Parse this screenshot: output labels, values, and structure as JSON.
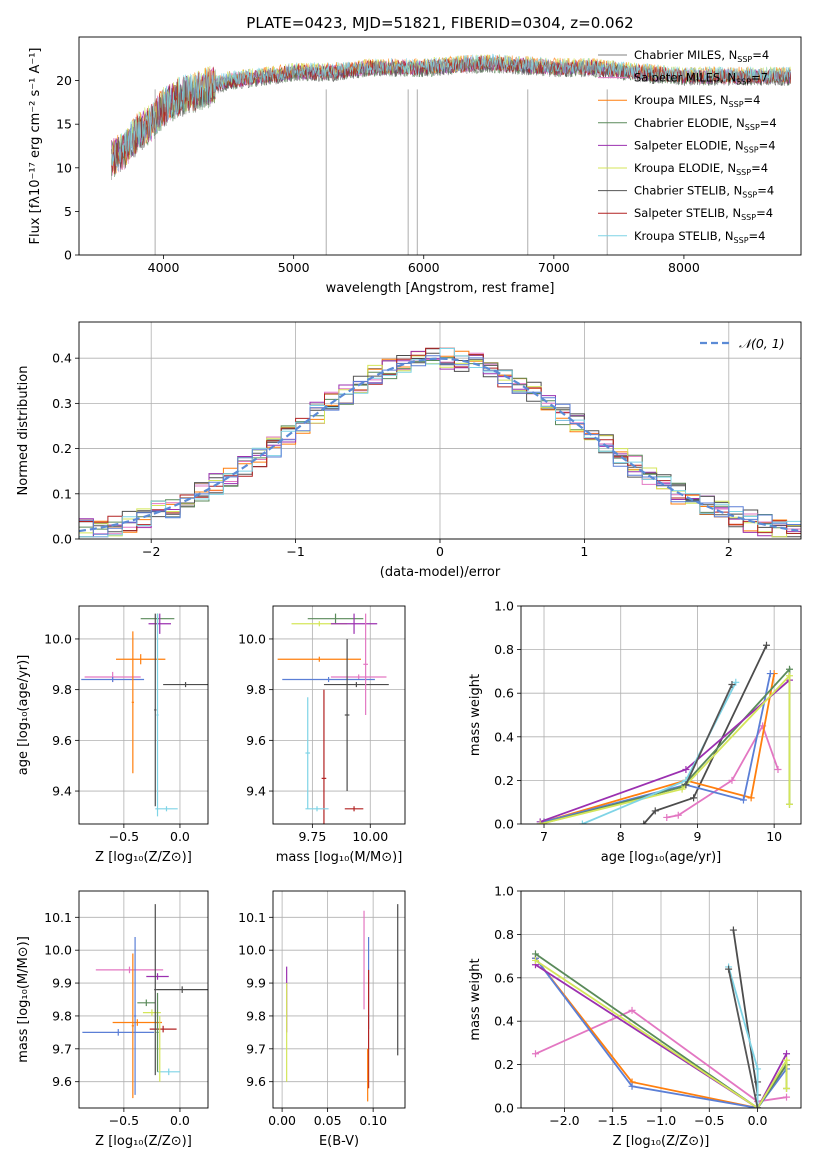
{
  "figure_title": "PLATE=0423, MJD=51821, FIBERID=0304, z=0.062",
  "series_colors": [
    "#4c4c4c",
    "#e377c2",
    "#ff7f0e",
    "#5a8a5a",
    "#9b30b0",
    "#d4e65a",
    "#555555",
    "#b22222",
    "#7fd4e6",
    "#5b7fd6"
  ],
  "chart_data": [
    {
      "id": "spectrum",
      "type": "line",
      "title": "PLATE=0423, MJD=51821, FIBERID=0304, z=0.062",
      "xlabel": "wavelength [Angstrom, rest frame]",
      "ylabel": "Flux [fλ10⁻¹⁷ erg cm⁻² s⁻¹ A⁻¹]",
      "xlim": [
        3350,
        8900
      ],
      "ylim": [
        0,
        25
      ],
      "xticks": [
        4000,
        5000,
        6000,
        7000,
        8000
      ],
      "yticks": [
        0,
        5,
        10,
        15,
        20
      ],
      "legend": "right",
      "legend_entries": [
        {
          "label": "Chabrier MILES, N",
          "sub": "SSP",
          "tail": "=4",
          "color": "#808080"
        },
        {
          "label": "Salpeter MILES, N",
          "sub": "SSP",
          "tail": "=7",
          "color": "#e377c2"
        },
        {
          "label": "Kroupa MILES, N",
          "sub": "SSP",
          "tail": "=4",
          "color": "#ff7f0e"
        },
        {
          "label": "Chabrier ELODIE, N",
          "sub": "SSP",
          "tail": "=4",
          "color": "#5a8a5a"
        },
        {
          "label": "Salpeter ELODIE, N",
          "sub": "SSP",
          "tail": "=4",
          "color": "#9b30b0"
        },
        {
          "label": "Kroupa ELODIE, N",
          "sub": "SSP",
          "tail": "=4",
          "color": "#d4e65a"
        },
        {
          "label": "Chabrier STELIB, N",
          "sub": "SSP",
          "tail": "=4",
          "color": "#555555"
        },
        {
          "label": "Salpeter STELIB, N",
          "sub": "SSP",
          "tail": "=4",
          "color": "#b22222"
        },
        {
          "label": "Kroupa STELIB, N",
          "sub": "SSP",
          "tail": "=4",
          "color": "#7fd4e6"
        }
      ],
      "spectrum_shape": {
        "x": [
          3600,
          3700,
          3800,
          3900,
          4000,
          4100,
          4300,
          4500,
          4800,
          5000,
          5300,
          5600,
          6000,
          6500,
          7000,
          7300,
          7600,
          8000,
          8500,
          8800
        ],
        "y": [
          11,
          12,
          14,
          15,
          17,
          18,
          19,
          20,
          20.5,
          21,
          21,
          21.5,
          21.5,
          22,
          21.5,
          21.5,
          21,
          20.5,
          20.5,
          20.5
        ]
      },
      "drop_lines": [
        3935,
        5250,
        5880,
        5950,
        6800,
        7410
      ]
    },
    {
      "id": "residual-hist",
      "type": "area",
      "xlabel": "(data-model)/error",
      "ylabel": "Normed distribution",
      "xlim": [
        -2.5,
        2.5
      ],
      "ylim": [
        0,
        0.48
      ],
      "xticks": [
        -2,
        -1,
        0,
        1,
        2
      ],
      "yticks": [
        0,
        0.1,
        0.2,
        0.3,
        0.4
      ],
      "legend": "top-right",
      "legend_label": "𝒩(0, 1)",
      "gaussian": {
        "mu": 0,
        "sigma": 1,
        "color": "#5b8bd6"
      }
    },
    {
      "id": "age-vs-Z",
      "type": "scatter",
      "xlabel": "Z [log₁₀(Z/Z⊙)]",
      "ylabel": "age  [log₁₀(age/yr)]",
      "xlim": [
        -0.9,
        0.25
      ],
      "ylim": [
        9.27,
        10.13
      ],
      "xticks": [
        -0.5,
        0.0
      ],
      "yticks": [
        9.4,
        9.6,
        9.8,
        10.0
      ],
      "points": [
        {
          "x": -0.2,
          "y": 10.08,
          "xerr": 0.15,
          "yerr": 0.02,
          "color": "#5a8a5a"
        },
        {
          "x": -0.18,
          "y": 10.06,
          "xerr": 0.1,
          "yerr": 0.04,
          "color": "#9b30b0"
        },
        {
          "x": -0.35,
          "y": 9.92,
          "xerr": 0.22,
          "yerr": 0.02,
          "color": "#ff7f0e"
        },
        {
          "x": -0.6,
          "y": 9.85,
          "xerr": 0.25,
          "yerr": 0.02,
          "color": "#e377c2"
        },
        {
          "x": -0.6,
          "y": 9.84,
          "xerr": 0.28,
          "yerr": 0.01,
          "color": "#5b7fd6"
        },
        {
          "x": 0.05,
          "y": 9.82,
          "xerr": 0.2,
          "yerr": 0.01,
          "color": "#4c4c4c"
        },
        {
          "x": -0.42,
          "y": 9.75,
          "xerr": 0.01,
          "yerr": 0.28,
          "color": "#ff7f0e"
        },
        {
          "x": -0.22,
          "y": 9.72,
          "xerr": 0.01,
          "yerr": 0.38,
          "color": "#4c4c4c"
        },
        {
          "x": -0.2,
          "y": 9.7,
          "xerr": 0.01,
          "yerr": 0.4,
          "color": "#7fd4e6"
        },
        {
          "x": -0.12,
          "y": 9.33,
          "xerr": 0.1,
          "yerr": 0.01,
          "color": "#7fd4e6"
        }
      ]
    },
    {
      "id": "age-vs-mass",
      "type": "scatter",
      "xlabel": "mass [log₁₀(M/M⊙)]",
      "ylabel": "",
      "xlim": [
        9.58,
        10.15
      ],
      "ylim": [
        9.27,
        10.13
      ],
      "xticks": [
        9.75,
        10.0
      ],
      "yticks": [
        9.4,
        9.6,
        9.8,
        10.0
      ],
      "points": [
        {
          "x": 9.85,
          "y": 10.08,
          "xerr": 0.12,
          "yerr": 0.02,
          "color": "#5a8a5a"
        },
        {
          "x": 9.78,
          "y": 10.06,
          "xerr": 0.12,
          "yerr": 0.01,
          "color": "#d4e65a"
        },
        {
          "x": 9.93,
          "y": 10.06,
          "xerr": 0.1,
          "yerr": 0.04,
          "color": "#9b30b0"
        },
        {
          "x": 9.78,
          "y": 9.92,
          "xerr": 0.18,
          "yerr": 0.01,
          "color": "#ff7f0e"
        },
        {
          "x": 9.95,
          "y": 9.85,
          "xerr": 0.12,
          "yerr": 0.01,
          "color": "#e377c2"
        },
        {
          "x": 9.82,
          "y": 9.84,
          "xerr": 0.2,
          "yerr": 0.01,
          "color": "#5b7fd6"
        },
        {
          "x": 9.94,
          "y": 9.82,
          "xerr": 0.14,
          "yerr": 0.01,
          "color": "#4c4c4c"
        },
        {
          "x": 9.98,
          "y": 9.9,
          "xerr": 0.01,
          "yerr": 0.2,
          "color": "#e377c2"
        },
        {
          "x": 9.9,
          "y": 9.7,
          "xerr": 0.01,
          "yerr": 0.3,
          "color": "#4c4c4c"
        },
        {
          "x": 9.73,
          "y": 9.55,
          "xerr": 0.01,
          "yerr": 0.22,
          "color": "#7fd4e6"
        },
        {
          "x": 9.8,
          "y": 9.45,
          "xerr": 0.01,
          "yerr": 0.35,
          "color": "#b22222"
        },
        {
          "x": 9.77,
          "y": 9.33,
          "xerr": 0.05,
          "yerr": 0.01,
          "color": "#7fd4e6"
        },
        {
          "x": 9.93,
          "y": 9.33,
          "xerr": 0.04,
          "yerr": 0.01,
          "color": "#b22222"
        }
      ]
    },
    {
      "id": "weight-vs-age",
      "type": "line",
      "xlabel": "age  [log₁₀(age/yr)]",
      "ylabel": "mass weight",
      "xlim": [
        6.7,
        10.35
      ],
      "ylim": [
        0,
        1.0
      ],
      "xticks": [
        7,
        8,
        9,
        10
      ],
      "yticks": [
        0.0,
        0.2,
        0.4,
        0.6,
        0.8,
        1.0
      ],
      "series": [
        {
          "color": "#4c4c4c",
          "x": [
            8.3,
            8.45,
            8.95,
            9.9
          ],
          "y": [
            0.0,
            0.06,
            0.12,
            0.82
          ]
        },
        {
          "color": "#e377c2",
          "x": [
            8.6,
            8.75,
            9.45,
            9.85,
            10.05
          ],
          "y": [
            0.03,
            0.04,
            0.2,
            0.45,
            0.25
          ]
        },
        {
          "color": "#ff7f0e",
          "x": [
            7.0,
            8.85,
            9.7,
            10.0
          ],
          "y": [
            0.01,
            0.2,
            0.12,
            0.69
          ]
        },
        {
          "color": "#5b7fd6",
          "x": [
            7.0,
            8.85,
            9.6,
            9.95
          ],
          "y": [
            0.01,
            0.18,
            0.11,
            0.69
          ]
        },
        {
          "color": "#5a8a5a",
          "x": [
            6.95,
            8.8,
            10.2,
            10.2
          ],
          "y": [
            0.0,
            0.17,
            0.71,
            0.09
          ]
        },
        {
          "color": "#9b30b0",
          "x": [
            6.95,
            8.85,
            10.2
          ],
          "y": [
            0.01,
            0.25,
            0.66
          ]
        },
        {
          "color": "#d4e65a",
          "x": [
            6.95,
            8.8,
            10.2,
            10.2
          ],
          "y": [
            0.0,
            0.16,
            0.68,
            0.09
          ]
        },
        {
          "color": "#7fd4e6",
          "x": [
            7.5,
            8.85,
            9.5
          ],
          "y": [
            0.0,
            0.2,
            0.65
          ]
        },
        {
          "color": "#555555",
          "x": [
            8.85,
            9.45
          ],
          "y": [
            0.18,
            0.64
          ]
        }
      ]
    },
    {
      "id": "mass-vs-Z",
      "type": "scatter",
      "xlabel": "Z [log₁₀(Z/Z⊙)]",
      "ylabel": "mass [log₁₀(M/M⊙)]",
      "xlim": [
        -0.9,
        0.25
      ],
      "ylim": [
        9.52,
        10.18
      ],
      "xticks": [
        -0.5,
        0.0
      ],
      "yticks": [
        9.6,
        9.7,
        9.8,
        9.9,
        10.0,
        10.1
      ],
      "points": [
        {
          "x": -0.45,
          "y": 9.94,
          "xerr": 0.3,
          "yerr": 0.01,
          "color": "#e377c2"
        },
        {
          "x": -0.2,
          "y": 9.92,
          "xerr": 0.1,
          "yerr": 0.01,
          "color": "#9b30b0"
        },
        {
          "x": 0.02,
          "y": 9.88,
          "xerr": 0.23,
          "yerr": 0.01,
          "color": "#4c4c4c"
        },
        {
          "x": -0.3,
          "y": 9.84,
          "xerr": 0.08,
          "yerr": 0.01,
          "color": "#5a8a5a"
        },
        {
          "x": -0.25,
          "y": 9.81,
          "xerr": 0.08,
          "yerr": 0.01,
          "color": "#d4e65a"
        },
        {
          "x": -0.38,
          "y": 9.78,
          "xerr": 0.22,
          "yerr": 0.01,
          "color": "#ff7f0e"
        },
        {
          "x": -0.15,
          "y": 9.76,
          "xerr": 0.12,
          "yerr": 0.01,
          "color": "#b22222"
        },
        {
          "x": -0.55,
          "y": 9.75,
          "xerr": 0.32,
          "yerr": 0.01,
          "color": "#5b7fd6"
        },
        {
          "x": -0.1,
          "y": 9.63,
          "xerr": 0.1,
          "yerr": 0.01,
          "color": "#7fd4e6"
        },
        {
          "x": -0.4,
          "y": 9.8,
          "xerr": 0.01,
          "yerr": 0.24,
          "color": "#5b7fd6"
        },
        {
          "x": -0.42,
          "y": 9.77,
          "xerr": 0.01,
          "yerr": 0.22,
          "color": "#ff7f0e"
        },
        {
          "x": -0.22,
          "y": 9.88,
          "xerr": 0.01,
          "yerr": 0.26,
          "color": "#4c4c4c"
        },
        {
          "x": -0.2,
          "y": 9.75,
          "xerr": 0.01,
          "yerr": 0.12,
          "color": "#5a8a5a"
        },
        {
          "x": -0.18,
          "y": 9.7,
          "xerr": 0.01,
          "yerr": 0.1,
          "color": "#d4e65a"
        }
      ]
    },
    {
      "id": "mass-vs-ebv",
      "type": "scatter",
      "xlabel": "E(B-V)",
      "ylabel": "",
      "xlim": [
        -0.01,
        0.135
      ],
      "ylim": [
        9.52,
        10.18
      ],
      "xticks": [
        0.0,
        0.05,
        0.1
      ],
      "yticks": [
        9.6,
        9.7,
        9.8,
        9.9,
        10.0,
        10.1
      ],
      "points": [
        {
          "x": 0.005,
          "y": 9.85,
          "xerr": 0.0,
          "yerr": 0.1,
          "color": "#9b30b0"
        },
        {
          "x": 0.005,
          "y": 9.75,
          "xerr": 0.0,
          "yerr": 0.15,
          "color": "#d4e65a"
        },
        {
          "x": 0.09,
          "y": 9.97,
          "xerr": 0.0,
          "yerr": 0.15,
          "color": "#e377c2"
        },
        {
          "x": 0.095,
          "y": 9.9,
          "xerr": 0.0,
          "yerr": 0.14,
          "color": "#5b7fd6"
        },
        {
          "x": 0.095,
          "y": 9.76,
          "xerr": 0.0,
          "yerr": 0.18,
          "color": "#b22222"
        },
        {
          "x": 0.094,
          "y": 9.62,
          "xerr": 0.0,
          "yerr": 0.08,
          "color": "#ff7f0e"
        },
        {
          "x": 0.127,
          "y": 9.91,
          "xerr": 0.0,
          "yerr": 0.23,
          "color": "#4c4c4c"
        }
      ]
    },
    {
      "id": "weight-vs-Z",
      "type": "line",
      "xlabel": "Z [log₁₀(Z/Z⊙)]",
      "ylabel": "mass weight",
      "xlim": [
        -2.45,
        0.45
      ],
      "ylim": [
        0,
        1.0
      ],
      "xticks": [
        -2.0,
        -1.5,
        -1.0,
        -0.5,
        0.0
      ],
      "yticks": [
        0.0,
        0.2,
        0.4,
        0.6,
        0.8,
        1.0
      ],
      "series": [
        {
          "color": "#e377c2",
          "x": [
            -2.3,
            -1.3,
            0.0,
            0.3
          ],
          "y": [
            0.25,
            0.45,
            0.03,
            0.05
          ]
        },
        {
          "color": "#ff7f0e",
          "x": [
            -2.3,
            -1.3,
            0.0,
            0.3
          ],
          "y": [
            0.69,
            0.12,
            0.0,
            0.2
          ]
        },
        {
          "color": "#5b7fd6",
          "x": [
            -2.3,
            -1.3,
            0.0,
            0.3
          ],
          "y": [
            0.69,
            0.1,
            0.0,
            0.18
          ]
        },
        {
          "color": "#5a8a5a",
          "x": [
            -2.3,
            0.0,
            0.3,
            0.3
          ],
          "y": [
            0.71,
            0.0,
            0.2,
            0.09
          ]
        },
        {
          "color": "#9b30b0",
          "x": [
            -2.3,
            0.0,
            0.3
          ],
          "y": [
            0.66,
            0.0,
            0.25
          ]
        },
        {
          "color": "#d4e65a",
          "x": [
            -2.3,
            0.0,
            0.3,
            0.3
          ],
          "y": [
            0.68,
            0.0,
            0.22,
            0.09
          ]
        },
        {
          "color": "#4c4c4c",
          "x": [
            -0.25,
            0.0,
            0.0
          ],
          "y": [
            0.82,
            0.06,
            0.12
          ]
        },
        {
          "color": "#7fd4e6",
          "x": [
            -0.3,
            0.0,
            0.0
          ],
          "y": [
            0.65,
            0.18,
            0.0
          ]
        },
        {
          "color": "#555555",
          "x": [
            -0.3,
            0.0
          ],
          "y": [
            0.64,
            0.0
          ]
        }
      ]
    }
  ]
}
